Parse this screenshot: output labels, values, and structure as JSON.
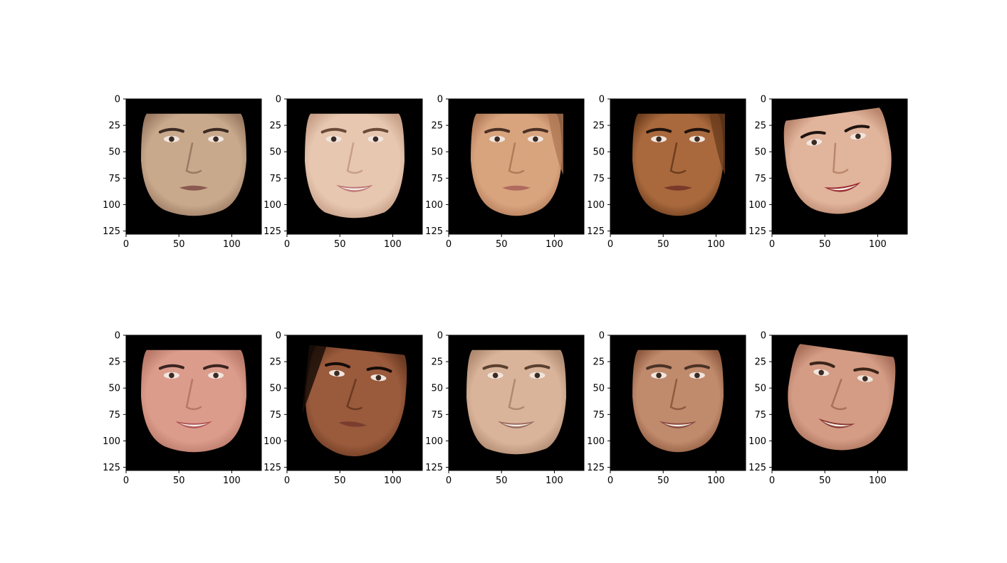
{
  "figure": {
    "background": "#ffffff",
    "image_background": "#000000",
    "xticks": [
      0,
      50,
      100
    ],
    "yticks": [
      0,
      25,
      50,
      75,
      100,
      125
    ],
    "xlim": [
      0,
      128
    ],
    "ylim": [
      128,
      0
    ],
    "panels": [
      {
        "row": 0,
        "col": 0,
        "face": {
          "skin": "#c9a98c",
          "shade": "#9a7a62",
          "lips": "#8a5a50",
          "brows": "#3a2a22",
          "shape": "wide-frontal",
          "tilt": 0,
          "smile": false,
          "side": "none"
        }
      },
      {
        "row": 0,
        "col": 1,
        "face": {
          "skin": "#e7c7b0",
          "shade": "#c79f88",
          "lips": "#c07878",
          "brows": "#6a4a38",
          "shape": "round-frontal",
          "tilt": 0,
          "smile": true,
          "side": "none"
        }
      },
      {
        "row": 0,
        "col": 2,
        "face": {
          "skin": "#d8a47e",
          "shade": "#b27a58",
          "lips": "#b06a5e",
          "brows": "#4a3024",
          "shape": "narrow-frontal",
          "tilt": 0,
          "smile": false,
          "side": "right-hair"
        }
      },
      {
        "row": 0,
        "col": 3,
        "face": {
          "skin": "#a9693d",
          "shade": "#6e3e1e",
          "lips": "#7a3a2a",
          "brows": "#1e120c",
          "shape": "narrow-frontal",
          "tilt": 0,
          "smile": false,
          "side": "right-hair"
        }
      },
      {
        "row": 0,
        "col": 4,
        "face": {
          "skin": "#e1b49c",
          "shade": "#b9866c",
          "lips": "#9a2a2e",
          "brows": "#1e1410",
          "shape": "tilted",
          "tilt": -8,
          "smile": true,
          "side": "none"
        }
      },
      {
        "row": 1,
        "col": 0,
        "face": {
          "skin": "#dc9c8c",
          "shade": "#b87868",
          "lips": "#b05658",
          "brows": "#3a2420",
          "shape": "wide-frontal",
          "tilt": 0,
          "smile": true,
          "side": "none"
        }
      },
      {
        "row": 1,
        "col": 1,
        "face": {
          "skin": "#9a5a3c",
          "shade": "#6a3a22",
          "lips": "#7a3e30",
          "brows": "#140c08",
          "shape": "turned",
          "tilt": 6,
          "smile": false,
          "side": "left-hair"
        }
      },
      {
        "row": 1,
        "col": 2,
        "face": {
          "skin": "#d9b49a",
          "shade": "#b08a70",
          "lips": "#9a6a5c",
          "brows": "#5a4030",
          "shape": "round-frontal",
          "tilt": 0,
          "smile": true,
          "side": "none"
        }
      },
      {
        "row": 1,
        "col": 3,
        "face": {
          "skin": "#c08a6c",
          "shade": "#8e5a40",
          "lips": "#8a4a40",
          "brows": "#4a3226",
          "shape": "narrow-frontal",
          "tilt": 0,
          "smile": true,
          "side": "none"
        }
      },
      {
        "row": 1,
        "col": 4,
        "face": {
          "skin": "#d49c84",
          "shade": "#a8705a",
          "lips": "#8a3a34",
          "brows": "#3a2418",
          "shape": "tilted",
          "tilt": 8,
          "smile": true,
          "side": "none"
        }
      }
    ]
  }
}
